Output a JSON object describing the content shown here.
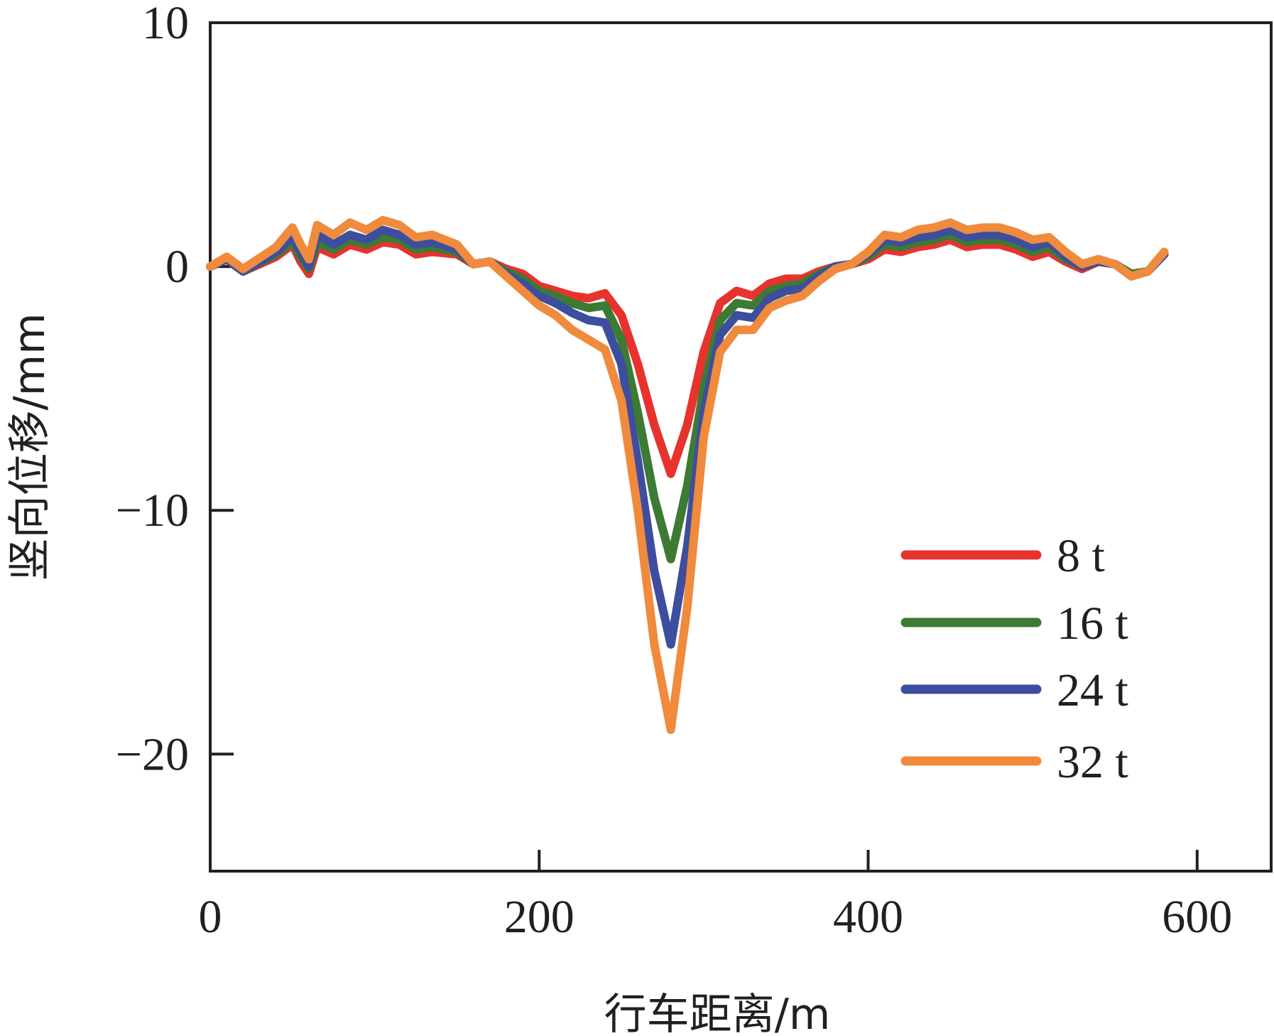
{
  "chart_data": {
    "type": "line",
    "xlabel": "行车距离/m",
    "ylabel": "竖向位移/mm",
    "xlim": [
      0,
      645
    ],
    "ylim": [
      -24.8,
      10
    ],
    "xticks": [
      0,
      200,
      400,
      600
    ],
    "xtick_labels": [
      "0",
      "200",
      "400",
      "600"
    ],
    "yticks": [
      10,
      0,
      -10,
      -20
    ],
    "ytick_labels": [
      "10",
      "0",
      "−10",
      "−20"
    ],
    "grid": false,
    "legend": {
      "placement": "bottom-right"
    },
    "series": [
      {
        "name": "8 t",
        "color": "#e8322e",
        "points": [
          [
            0,
            0
          ],
          [
            10,
            0.3
          ],
          [
            20,
            -0.2
          ],
          [
            40,
            0.4
          ],
          [
            50,
            0.9
          ],
          [
            55,
            0.2
          ],
          [
            60,
            -0.3
          ],
          [
            65,
            0.8
          ],
          [
            75,
            0.5
          ],
          [
            85,
            0.9
          ],
          [
            95,
            0.7
          ],
          [
            105,
            1.0
          ],
          [
            115,
            0.9
          ],
          [
            125,
            0.5
          ],
          [
            135,
            0.6
          ],
          [
            150,
            0.5
          ],
          [
            160,
            0.1
          ],
          [
            170,
            0.2
          ],
          [
            180,
            -0.1
          ],
          [
            190,
            -0.3
          ],
          [
            200,
            -0.8
          ],
          [
            210,
            -1.0
          ],
          [
            220,
            -1.2
          ],
          [
            230,
            -1.3
          ],
          [
            240,
            -1.1
          ],
          [
            250,
            -2.0
          ],
          [
            260,
            -4.0
          ],
          [
            270,
            -6.5
          ],
          [
            280,
            -8.5
          ],
          [
            290,
            -6.5
          ],
          [
            300,
            -3.5
          ],
          [
            310,
            -1.5
          ],
          [
            320,
            -1.0
          ],
          [
            330,
            -1.2
          ],
          [
            340,
            -0.7
          ],
          [
            350,
            -0.5
          ],
          [
            360,
            -0.5
          ],
          [
            370,
            -0.2
          ],
          [
            380,
            0.0
          ],
          [
            390,
            0.1
          ],
          [
            400,
            0.3
          ],
          [
            410,
            0.7
          ],
          [
            420,
            0.6
          ],
          [
            430,
            0.8
          ],
          [
            440,
            0.9
          ],
          [
            450,
            1.1
          ],
          [
            460,
            0.8
          ],
          [
            470,
            0.9
          ],
          [
            480,
            0.9
          ],
          [
            490,
            0.7
          ],
          [
            500,
            0.4
          ],
          [
            510,
            0.6
          ],
          [
            520,
            0.2
          ],
          [
            530,
            -0.1
          ],
          [
            540,
            0.2
          ],
          [
            550,
            0.1
          ],
          [
            560,
            -0.3
          ],
          [
            570,
            -0.2
          ],
          [
            580,
            0.5
          ]
        ]
      },
      {
        "name": "16 t",
        "color": "#3d7a34",
        "points": [
          [
            0,
            0
          ],
          [
            10,
            0.3
          ],
          [
            20,
            -0.2
          ],
          [
            40,
            0.5
          ],
          [
            50,
            1.0
          ],
          [
            55,
            0.4
          ],
          [
            60,
            -0.1
          ],
          [
            65,
            1.0
          ],
          [
            75,
            0.7
          ],
          [
            85,
            1.1
          ],
          [
            95,
            0.9
          ],
          [
            105,
            1.2
          ],
          [
            115,
            1.1
          ],
          [
            125,
            0.7
          ],
          [
            135,
            0.8
          ],
          [
            150,
            0.6
          ],
          [
            160,
            0.1
          ],
          [
            170,
            0.2
          ],
          [
            180,
            -0.2
          ],
          [
            190,
            -0.5
          ],
          [
            200,
            -1.0
          ],
          [
            210,
            -1.2
          ],
          [
            220,
            -1.5
          ],
          [
            230,
            -1.7
          ],
          [
            240,
            -1.6
          ],
          [
            250,
            -3.0
          ],
          [
            260,
            -6.0
          ],
          [
            270,
            -9.5
          ],
          [
            280,
            -12.0
          ],
          [
            290,
            -9.0
          ],
          [
            300,
            -5.0
          ],
          [
            310,
            -2.2
          ],
          [
            320,
            -1.5
          ],
          [
            330,
            -1.6
          ],
          [
            340,
            -1.0
          ],
          [
            350,
            -0.8
          ],
          [
            360,
            -0.7
          ],
          [
            370,
            -0.3
          ],
          [
            380,
            0.0
          ],
          [
            390,
            0.1
          ],
          [
            400,
            0.4
          ],
          [
            410,
            0.9
          ],
          [
            420,
            0.8
          ],
          [
            430,
            1.0
          ],
          [
            440,
            1.1
          ],
          [
            450,
            1.3
          ],
          [
            460,
            1.0
          ],
          [
            470,
            1.1
          ],
          [
            480,
            1.1
          ],
          [
            490,
            0.9
          ],
          [
            500,
            0.6
          ],
          [
            510,
            0.8
          ],
          [
            520,
            0.3
          ],
          [
            530,
            0.0
          ],
          [
            540,
            0.2
          ],
          [
            550,
            0.1
          ],
          [
            560,
            -0.3
          ],
          [
            570,
            -0.2
          ],
          [
            580,
            0.5
          ]
        ]
      },
      {
        "name": "24 t",
        "color": "#3d4e9e",
        "points": [
          [
            0,
            0
          ],
          [
            10,
            0.3
          ],
          [
            20,
            -0.2
          ],
          [
            40,
            0.6
          ],
          [
            50,
            1.2
          ],
          [
            55,
            0.6
          ],
          [
            60,
            0.0
          ],
          [
            65,
            1.3
          ],
          [
            75,
            0.9
          ],
          [
            85,
            1.3
          ],
          [
            95,
            1.1
          ],
          [
            105,
            1.5
          ],
          [
            115,
            1.3
          ],
          [
            125,
            0.9
          ],
          [
            135,
            1.0
          ],
          [
            150,
            0.7
          ],
          [
            160,
            0.1
          ],
          [
            170,
            0.2
          ],
          [
            180,
            -0.3
          ],
          [
            190,
            -0.7
          ],
          [
            200,
            -1.2
          ],
          [
            210,
            -1.5
          ],
          [
            220,
            -1.9
          ],
          [
            230,
            -2.2
          ],
          [
            240,
            -2.3
          ],
          [
            250,
            -4.0
          ],
          [
            260,
            -8.0
          ],
          [
            270,
            -12.5
          ],
          [
            280,
            -15.5
          ],
          [
            290,
            -11.5
          ],
          [
            300,
            -6.0
          ],
          [
            310,
            -2.8
          ],
          [
            320,
            -2.0
          ],
          [
            330,
            -2.1
          ],
          [
            340,
            -1.3
          ],
          [
            350,
            -1.0
          ],
          [
            360,
            -0.9
          ],
          [
            370,
            -0.4
          ],
          [
            380,
            0.0
          ],
          [
            390,
            0.1
          ],
          [
            400,
            0.5
          ],
          [
            410,
            1.1
          ],
          [
            420,
            1.0
          ],
          [
            430,
            1.2
          ],
          [
            440,
            1.3
          ],
          [
            450,
            1.5
          ],
          [
            460,
            1.2
          ],
          [
            470,
            1.3
          ],
          [
            480,
            1.3
          ],
          [
            490,
            1.1
          ],
          [
            500,
            0.8
          ],
          [
            510,
            1.0
          ],
          [
            520,
            0.4
          ],
          [
            530,
            0.0
          ],
          [
            540,
            0.2
          ],
          [
            550,
            0.1
          ],
          [
            560,
            -0.4
          ],
          [
            570,
            -0.2
          ],
          [
            580,
            0.5
          ]
        ]
      },
      {
        "name": "32 t",
        "color": "#f08a3c",
        "points": [
          [
            0,
            0
          ],
          [
            10,
            0.4
          ],
          [
            20,
            -0.1
          ],
          [
            40,
            0.8
          ],
          [
            50,
            1.6
          ],
          [
            55,
            0.9
          ],
          [
            60,
            0.3
          ],
          [
            65,
            1.7
          ],
          [
            75,
            1.3
          ],
          [
            85,
            1.8
          ],
          [
            95,
            1.5
          ],
          [
            105,
            1.9
          ],
          [
            115,
            1.7
          ],
          [
            125,
            1.2
          ],
          [
            135,
            1.3
          ],
          [
            150,
            0.9
          ],
          [
            160,
            0.1
          ],
          [
            170,
            0.2
          ],
          [
            180,
            -0.4
          ],
          [
            190,
            -1.0
          ],
          [
            200,
            -1.6
          ],
          [
            210,
            -2.0
          ],
          [
            220,
            -2.6
          ],
          [
            230,
            -3.0
          ],
          [
            240,
            -3.4
          ],
          [
            250,
            -5.5
          ],
          [
            260,
            -10.0
          ],
          [
            270,
            -15.5
          ],
          [
            280,
            -19.0
          ],
          [
            290,
            -14.0
          ],
          [
            300,
            -7.0
          ],
          [
            310,
            -3.5
          ],
          [
            320,
            -2.6
          ],
          [
            330,
            -2.6
          ],
          [
            340,
            -1.7
          ],
          [
            350,
            -1.4
          ],
          [
            360,
            -1.2
          ],
          [
            370,
            -0.6
          ],
          [
            380,
            -0.1
          ],
          [
            390,
            0.1
          ],
          [
            400,
            0.6
          ],
          [
            410,
            1.3
          ],
          [
            420,
            1.2
          ],
          [
            430,
            1.5
          ],
          [
            440,
            1.6
          ],
          [
            450,
            1.8
          ],
          [
            460,
            1.5
          ],
          [
            470,
            1.6
          ],
          [
            480,
            1.6
          ],
          [
            490,
            1.4
          ],
          [
            500,
            1.1
          ],
          [
            510,
            1.2
          ],
          [
            520,
            0.6
          ],
          [
            530,
            0.1
          ],
          [
            540,
            0.3
          ],
          [
            550,
            0.1
          ],
          [
            560,
            -0.4
          ],
          [
            570,
            -0.2
          ],
          [
            580,
            0.6
          ]
        ]
      }
    ]
  }
}
